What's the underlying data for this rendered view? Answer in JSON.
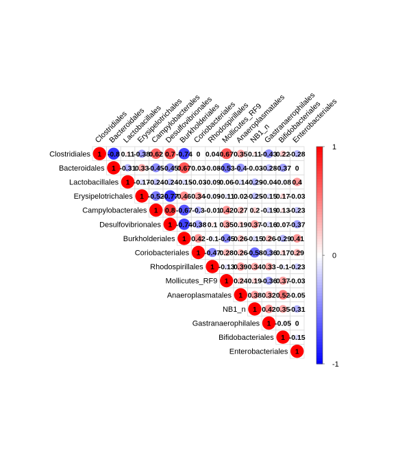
{
  "chart_data": {
    "type": "heatmap",
    "variant": "upper-triangle correlation matrix",
    "title": "",
    "labels": [
      "Clostridiales",
      "Bacteroidales",
      "Lactobacillales",
      "Erysipelotrichales",
      "Campylobacterales",
      "Desulfovibrionales",
      "Burkholderiales",
      "Coriobacteriales",
      "Rhodospirillales",
      "Mollicutes_RF9",
      "Anaeroplasmatales",
      "NB1_n",
      "Gastranaerophilales",
      "Bifidobacteriales",
      "Enterobacteriales"
    ],
    "matrix": [
      [
        "1",
        "-0.8",
        "0.11",
        "-0.38",
        "0.62",
        "0.7",
        "-0.74",
        "0",
        "0.04",
        "0.67",
        "0.35",
        "0.11",
        "-0.43",
        "0.22",
        "-0.28"
      ],
      [
        null,
        "1",
        "-0.31",
        "0.33",
        "-0.45",
        "-0.45",
        "0.67",
        "0.03",
        "-0.08",
        "-0.53",
        "-0.4",
        "-0.03",
        "-0.28",
        "-0.37",
        "0"
      ],
      [
        null,
        null,
        "1",
        "-0.17",
        "-0.24",
        "-0.24",
        "-0.15",
        "-0.03",
        "-0.09",
        "0.06",
        "-0.14",
        "-0.29",
        "-0.04",
        "-0.08",
        "0.4"
      ],
      [
        null,
        null,
        null,
        "1",
        "-0.52",
        "-0.77",
        "0.46",
        "0.34",
        "-0.09",
        "-0.11",
        "0.02",
        "-0.25",
        "-0.15",
        "0.17",
        "-0.03"
      ],
      [
        null,
        null,
        null,
        null,
        "1",
        "0.8",
        "-0.67",
        "-0.3",
        "-0.01",
        "0.42",
        "0.27",
        "0.2",
        "-0.19",
        "0.13",
        "-0.23"
      ],
      [
        null,
        null,
        null,
        null,
        null,
        "1",
        "-0.74",
        "-0.38",
        "0.1",
        "0.35",
        "0.19",
        "0.37",
        "-0.16",
        "0.07",
        "-0.37"
      ],
      [
        null,
        null,
        null,
        null,
        null,
        null,
        "1",
        "0.42",
        "-0.1",
        "-0.45",
        "0.26",
        "-0.15",
        "0.26",
        "-0.29",
        "0.41"
      ],
      [
        null,
        null,
        null,
        null,
        null,
        null,
        null,
        "1",
        "-0.47",
        "0.28",
        "0.26",
        "-0.58",
        "-0.36",
        "0.17",
        "0.29"
      ],
      [
        null,
        null,
        null,
        null,
        null,
        null,
        null,
        null,
        "1",
        "-0.13",
        "0.39",
        "0.34",
        "0.33",
        "-0.1",
        "-0.23"
      ],
      [
        null,
        null,
        null,
        null,
        null,
        null,
        null,
        null,
        null,
        "1",
        "0.24",
        "0.19",
        "-0.36",
        "0.37",
        "-0.03"
      ],
      [
        null,
        null,
        null,
        null,
        null,
        null,
        null,
        null,
        null,
        null,
        "1",
        "0.38",
        "0.32",
        "0.52",
        "-0.05"
      ],
      [
        null,
        null,
        null,
        null,
        null,
        null,
        null,
        null,
        null,
        null,
        null,
        "1",
        "0.42",
        "0.35",
        "-0.31"
      ],
      [
        null,
        null,
        null,
        null,
        null,
        null,
        null,
        null,
        null,
        null,
        null,
        null,
        "1",
        "-0.05",
        "0"
      ],
      [
        null,
        null,
        null,
        null,
        null,
        null,
        null,
        null,
        null,
        null,
        null,
        null,
        null,
        "1",
        "-0.15"
      ],
      [
        null,
        null,
        null,
        null,
        null,
        null,
        null,
        null,
        null,
        null,
        null,
        null,
        null,
        null,
        "1"
      ]
    ],
    "color_scale": {
      "low": -1,
      "mid": 0,
      "high": 1,
      "low_color": "#0000ff",
      "mid_color": "#ffffff",
      "high_color": "#ff0000"
    },
    "colorbar_ticks": [
      "1",
      "0",
      "-1"
    ],
    "grid": true,
    "legend": "right"
  }
}
